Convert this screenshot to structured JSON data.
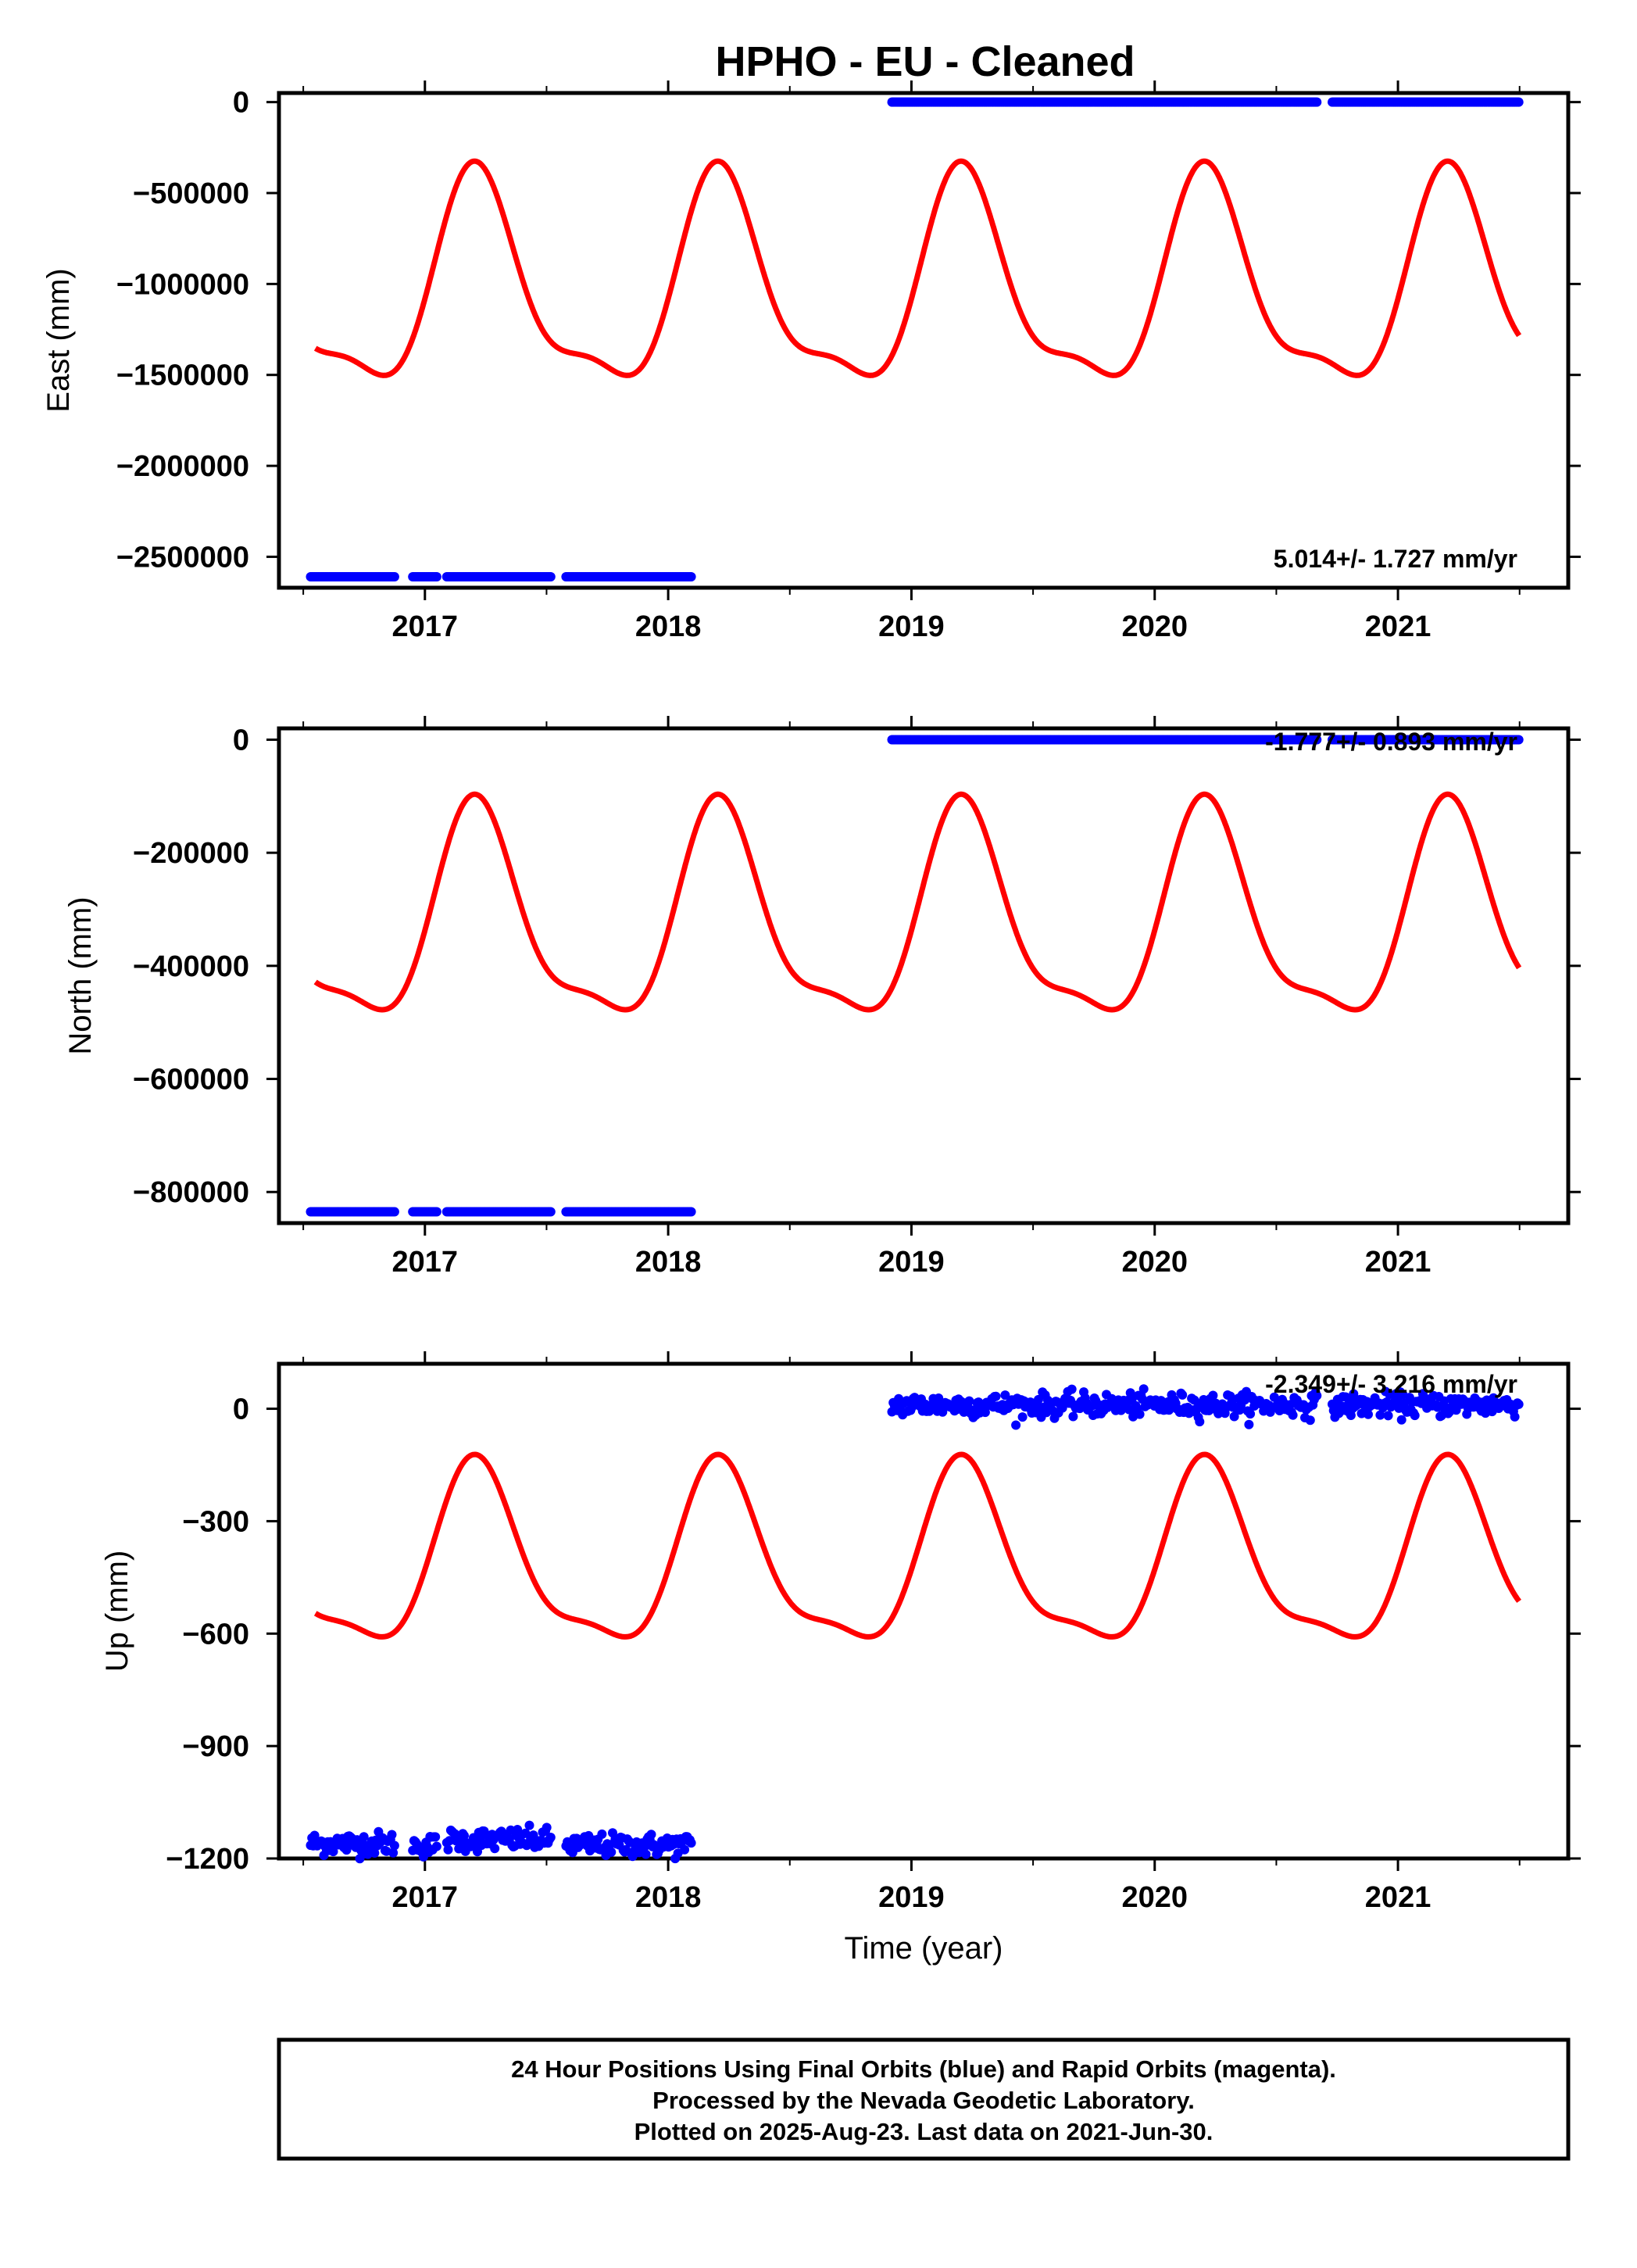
{
  "title": "HPHO  - EU - Cleaned",
  "colors": {
    "data": "#0000ff",
    "model": "#ff0000",
    "axes": "#000000"
  },
  "footer": {
    "line1": "24 Hour Positions Using Final Orbits (blue) and Rapid Orbits (magenta).",
    "line2": "Processed by the Nevada Geodetic Laboratory.",
    "line3": "Plotted on 2025-Aug-23. Last data on 2021-Jun-30."
  },
  "chart_data": [
    {
      "type": "scatter",
      "id": "east",
      "ylabel": "East (mm)",
      "xlabel": "",
      "xlim": [
        2016.4,
        2021.7
      ],
      "ylim": [
        -2670000,
        50000
      ],
      "xticks": [
        "2017",
        "2018",
        "2019",
        "2020",
        "2021"
      ],
      "yticks": [
        "0",
        "−500000",
        "−1000000",
        "−1500000",
        "−2000000",
        "−2500000"
      ],
      "ytick_values": [
        0,
        -500000,
        -1000000,
        -1500000,
        -2000000,
        -2500000
      ],
      "rate": "5.014+/- 1.727 mm/yr",
      "series": [
        {
          "role": "observations",
          "segments": [
            {
              "x": [
                2016.53,
                2016.88
              ],
              "y": -2610000
            },
            {
              "x": [
                2016.95,
                2017.05
              ],
              "y": -2610000
            },
            {
              "x": [
                2017.09,
                2017.52
              ],
              "y": -2610000
            },
            {
              "x": [
                2017.58,
                2018.1
              ],
              "y": -2610000
            },
            {
              "x": [
                2018.92,
                2020.67
              ],
              "y": 0
            },
            {
              "x": [
                2020.73,
                2021.5
              ],
              "y": 0
            }
          ],
          "scatter": 0
        },
        {
          "role": "model",
          "x_range": [
            2016.55,
            2021.5
          ],
          "mean": -1050000,
          "annual_amp": 550000,
          "semiannual_amp": 180000
        }
      ]
    },
    {
      "type": "scatter",
      "id": "north",
      "ylabel": "North (mm)",
      "xlabel": "",
      "xlim": [
        2016.4,
        2021.7
      ],
      "ylim": [
        -855000,
        20000
      ],
      "xticks": [
        "2017",
        "2018",
        "2019",
        "2020",
        "2021"
      ],
      "yticks": [
        "0",
        "−200000",
        "−400000",
        "−600000",
        "−800000"
      ],
      "ytick_values": [
        0,
        -200000,
        -400000,
        -600000,
        -800000
      ],
      "rate": "-1.777+/- 0.893 mm/yr",
      "series": [
        {
          "role": "observations",
          "segments": [
            {
              "x": [
                2016.53,
                2016.88
              ],
              "y": -835000
            },
            {
              "x": [
                2016.95,
                2017.05
              ],
              "y": -835000
            },
            {
              "x": [
                2017.09,
                2017.52
              ],
              "y": -835000
            },
            {
              "x": [
                2017.58,
                2018.1
              ],
              "y": -835000
            },
            {
              "x": [
                2018.92,
                2020.67
              ],
              "y": 0
            },
            {
              "x": [
                2020.73,
                2021.5
              ],
              "y": 0
            }
          ],
          "scatter": 0
        },
        {
          "role": "model",
          "x_range": [
            2016.55,
            2021.5
          ],
          "mean": -330000,
          "annual_amp": 180000,
          "semiannual_amp": 55000
        }
      ]
    },
    {
      "type": "scatter",
      "id": "up",
      "ylabel": "Up (mm)",
      "xlabel": "Time (year)",
      "xlim": [
        2016.4,
        2021.7
      ],
      "ylim": [
        -1200,
        120
      ],
      "xticks": [
        "2017",
        "2018",
        "2019",
        "2020",
        "2021"
      ],
      "yticks": [
        "0",
        "−300",
        "−600",
        "−900",
        "−1200"
      ],
      "ytick_values": [
        0,
        -300,
        -600,
        -900,
        -1200
      ],
      "rate": "-2.349+/- 3.216 mm/yr",
      "series": [
        {
          "role": "observations",
          "segments": [
            {
              "x": [
                2016.53,
                2016.88
              ],
              "y": -1160
            },
            {
              "x": [
                2016.95,
                2017.05
              ],
              "y": -1165
            },
            {
              "x": [
                2017.09,
                2017.52
              ],
              "y": -1150
            },
            {
              "x": [
                2017.58,
                2018.1
              ],
              "y": -1165
            },
            {
              "x": [
                2018.92,
                2020.67
              ],
              "y": 10
            },
            {
              "x": [
                2020.73,
                2021.5
              ],
              "y": 10
            }
          ],
          "scatter": 22
        },
        {
          "role": "model",
          "x_range": [
            2016.55,
            2021.5
          ],
          "mean": -420,
          "annual_amp": 230,
          "semiannual_amp": 70
        }
      ]
    }
  ]
}
